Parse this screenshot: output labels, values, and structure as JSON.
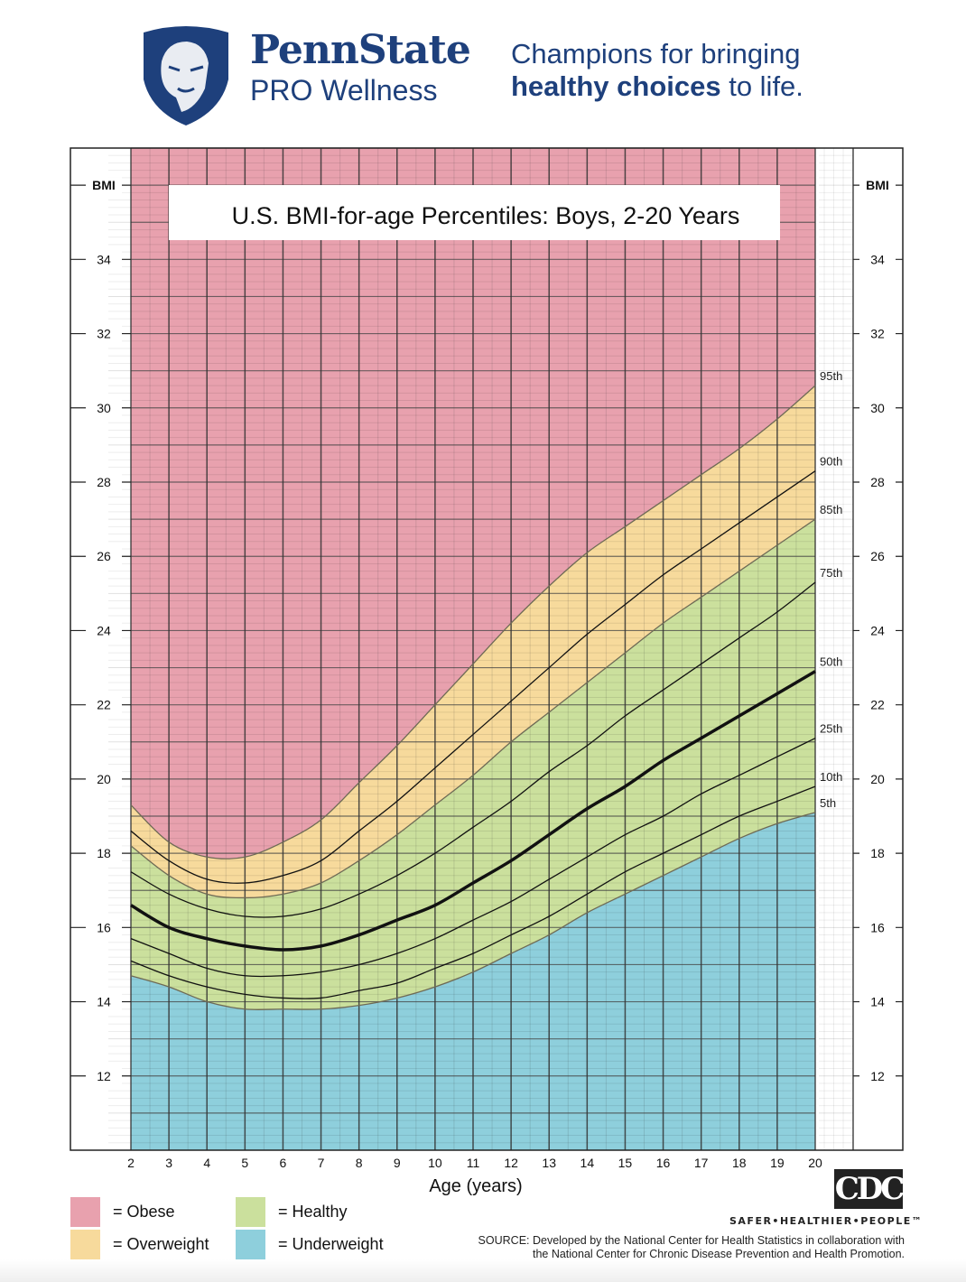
{
  "header": {
    "brand_line1": "PennState",
    "brand_line2": "PRO Wellness",
    "tagline_line1": "Champions for bringing",
    "tagline_bold": "healthy choices",
    "tagline_rest": " to life."
  },
  "colors": {
    "obese": "#e8a1ae",
    "overweight": "#f7da9c",
    "healthy": "#cbe09d",
    "underweight": "#8ecfdc",
    "brand": "#1e407c"
  },
  "chart_data": {
    "type": "area",
    "title": "U.S. BMI-for-age Percentiles: Boys, 2-20 Years",
    "xlabel": "Age (years)",
    "ylabel": "BMI",
    "xlim": [
      2,
      20
    ],
    "ylim": [
      10,
      37
    ],
    "x": [
      2,
      3,
      4,
      5,
      6,
      7,
      8,
      9,
      10,
      11,
      12,
      13,
      14,
      15,
      16,
      17,
      18,
      19,
      20
    ],
    "xticks": [
      "2",
      "3",
      "4",
      "5",
      "6",
      "7",
      "8",
      "9",
      "10",
      "11",
      "12",
      "13",
      "14",
      "15",
      "16",
      "17",
      "18",
      "19",
      "20"
    ],
    "yticks": [
      "12",
      "14",
      "16",
      "18",
      "20",
      "22",
      "24",
      "26",
      "28",
      "30",
      "32",
      "34"
    ],
    "grid": true,
    "series": [
      {
        "name": "5th",
        "values": [
          14.7,
          14.4,
          14.0,
          13.8,
          13.8,
          13.8,
          13.9,
          14.1,
          14.4,
          14.8,
          15.3,
          15.8,
          16.4,
          16.9,
          17.4,
          17.9,
          18.4,
          18.8,
          19.1
        ]
      },
      {
        "name": "10th",
        "values": [
          15.1,
          14.7,
          14.4,
          14.2,
          14.1,
          14.1,
          14.3,
          14.5,
          14.9,
          15.3,
          15.8,
          16.3,
          16.9,
          17.5,
          18.0,
          18.5,
          19.0,
          19.4,
          19.8
        ]
      },
      {
        "name": "25th",
        "values": [
          15.7,
          15.3,
          14.9,
          14.7,
          14.7,
          14.8,
          15.0,
          15.3,
          15.7,
          16.2,
          16.7,
          17.3,
          17.9,
          18.5,
          19.0,
          19.6,
          20.1,
          20.6,
          21.1
        ]
      },
      {
        "name": "50th",
        "values": [
          16.6,
          16.0,
          15.7,
          15.5,
          15.4,
          15.5,
          15.8,
          16.2,
          16.6,
          17.2,
          17.8,
          18.5,
          19.2,
          19.8,
          20.5,
          21.1,
          21.7,
          22.3,
          22.9
        ]
      },
      {
        "name": "75th",
        "values": [
          17.5,
          16.9,
          16.5,
          16.3,
          16.3,
          16.5,
          16.9,
          17.4,
          18.0,
          18.7,
          19.4,
          20.2,
          20.9,
          21.7,
          22.4,
          23.1,
          23.8,
          24.5,
          25.3
        ]
      },
      {
        "name": "85th",
        "values": [
          18.2,
          17.4,
          16.9,
          16.8,
          16.9,
          17.2,
          17.8,
          18.5,
          19.3,
          20.1,
          21.0,
          21.8,
          22.6,
          23.4,
          24.2,
          24.9,
          25.6,
          26.3,
          27.0
        ]
      },
      {
        "name": "90th",
        "values": [
          18.6,
          17.8,
          17.3,
          17.2,
          17.4,
          17.8,
          18.6,
          19.4,
          20.3,
          21.2,
          22.1,
          23.0,
          23.9,
          24.7,
          25.5,
          26.2,
          26.9,
          27.6,
          28.3
        ]
      },
      {
        "name": "95th",
        "values": [
          19.3,
          18.3,
          17.9,
          17.9,
          18.3,
          18.9,
          19.9,
          20.9,
          22.0,
          23.1,
          24.2,
          25.2,
          26.1,
          26.8,
          27.5,
          28.2,
          28.9,
          29.7,
          30.6
        ]
      }
    ],
    "legend": [
      {
        "key": "obese",
        "label": "= Obese"
      },
      {
        "key": "overweight",
        "label": "= Overweight"
      },
      {
        "key": "healthy",
        "label": "= Healthy"
      },
      {
        "key": "underweight",
        "label": "= Underweight"
      }
    ]
  },
  "footer": {
    "cdc_logo": "CDC",
    "cdc_tagline": "SAFER•HEALTHIER•PEOPLE™",
    "source_line1": "SOURCE: Developed by the National Center for Health Statistics in collaboration with",
    "source_line2": "the National Center for Chronic Disease Prevention and Health Promotion."
  }
}
